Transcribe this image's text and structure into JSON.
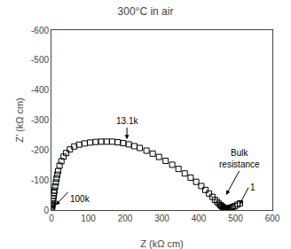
{
  "chart_data": {
    "type": "scatter",
    "title": "300°C in air",
    "xlabel": "Z (kΩ cm)",
    "ylabel": "Z’ (kΩ cm)",
    "xlim": [
      0,
      600
    ],
    "ylim": [
      0,
      -600
    ],
    "xticks": [
      0,
      100,
      200,
      300,
      400,
      500,
      600
    ],
    "yticks": [
      0,
      -100,
      -200,
      -300,
      -400,
      -500,
      -600
    ],
    "grid": false,
    "marker": "square",
    "color": "#000000",
    "x": [
      0.5,
      1.0,
      1.5,
      2.0,
      2.5,
      3.0,
      4.0,
      5.0,
      6.0,
      7.0,
      8.0,
      10.0,
      12.0,
      14.0,
      16.0,
      18.0,
      22.0,
      27.0,
      33.0,
      40.0,
      50.0,
      62.0,
      75.0,
      90.0,
      105.0,
      120.0,
      135.0,
      150.0,
      165.0,
      180.0,
      195.0,
      210.0,
      225.0,
      240.0,
      258.0,
      275.0,
      292.0,
      310.0,
      328.0,
      345.0,
      362.0,
      378.0,
      393.0,
      407.0,
      418.0,
      428.0,
      437.0,
      444.0,
      450.0,
      455.0,
      459.0,
      462.0,
      465.0,
      467.0,
      469.0,
      471.0,
      472.5,
      474.0,
      476.0,
      478.0,
      480.0,
      483.0,
      487.0,
      492.0,
      498.0,
      505.0,
      512.0
    ],
    "values": [
      -2,
      -5,
      -8,
      -12,
      -16,
      -22,
      -30,
      -38,
      -47,
      -57,
      -65,
      -78,
      -92,
      -105,
      -118,
      -130,
      -148,
      -163,
      -178,
      -190,
      -202,
      -212,
      -218,
      -222,
      -225,
      -227,
      -228,
      -228,
      -228,
      -226,
      -223,
      -219,
      -213,
      -207,
      -198,
      -188,
      -177,
      -164,
      -151,
      -137,
      -122,
      -108,
      -94,
      -80,
      -67,
      -55,
      -44,
      -34,
      -27,
      -21,
      -16,
      -13,
      -10,
      -8,
      -6,
      -5,
      -4,
      -4,
      -4,
      -4,
      -5,
      -6,
      -8,
      -10,
      -13,
      -18,
      -22
    ],
    "annotations": [
      {
        "text": "13.1k",
        "x": 205,
        "y": -230,
        "xytext": [
          205,
          -275
        ]
      },
      {
        "text": "Bulk\nresistance",
        "x": 472,
        "y": -45,
        "xytext": [
          510,
          -130
        ]
      },
      {
        "text": "100k",
        "x": 8,
        "y": -12,
        "xytext": [
          45,
          -60
        ]
      },
      {
        "text": "1",
        "x": 508,
        "y": -12,
        "xytext": [
          535,
          -75
        ]
      }
    ]
  }
}
